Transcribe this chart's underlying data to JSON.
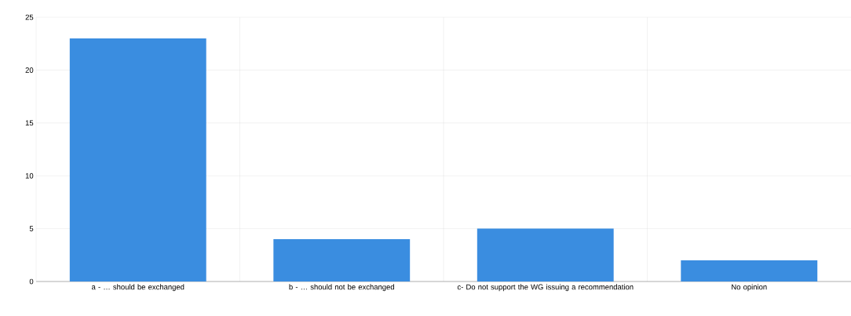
{
  "chart_data": {
    "type": "bar",
    "categories": [
      "a - … should be exchanged",
      "b - … should not be exchanged",
      "c- Do not support the WG issuing a recommendation",
      "No opinion"
    ],
    "values": [
      23,
      4,
      5,
      2
    ],
    "color": "#3a8de0",
    "ylim": [
      0,
      25
    ],
    "yticks": [
      0,
      5,
      10,
      15,
      20,
      25
    ],
    "grid": true
  }
}
